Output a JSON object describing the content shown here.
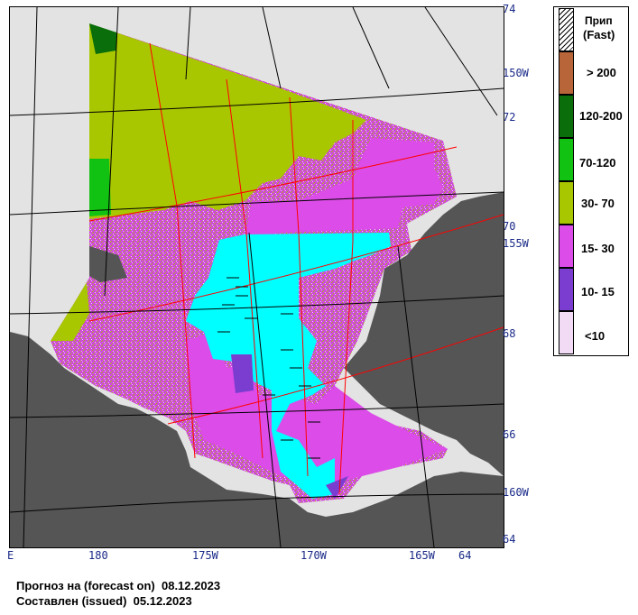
{
  "map": {
    "lat_labels": [
      "74",
      "72",
      "70",
      "68",
      "66",
      "64"
    ],
    "lon_right_labels": [
      "150W",
      "155W",
      "160W"
    ],
    "lon_bottom_labels": [
      "E",
      "180",
      "175W",
      "170W",
      "165W",
      "64"
    ]
  },
  "legend": {
    "fast_title_1": "Прип",
    "fast_title_2": "(Fast)",
    "items": [
      {
        "label": "> 200",
        "color": "#b8653a"
      },
      {
        "label": "120-200",
        "color": "#0a6e0a"
      },
      {
        "label": "70-120",
        "color": "#12c212"
      },
      {
        "label": "30- 70",
        "color": "#a9c700"
      },
      {
        "label": "15- 30",
        "color": "#dc4ce8"
      },
      {
        "label": "10- 15",
        "color": "#7a3dd0"
      },
      {
        "label": "<10",
        "color": "#f2dcf5"
      }
    ]
  },
  "footer": {
    "forecast": "Прогноз на (forecast on)  08.12.2023",
    "issued": "Составлен (issued)  05.12.2023"
  },
  "colors": {
    "land": "#555555",
    "no_data": "#e3e3e3",
    "fast_ice": "#00ffff",
    "grid_red": "#ff0000",
    "grid_black": "#000000",
    "text_blue": "#1a2a88"
  }
}
